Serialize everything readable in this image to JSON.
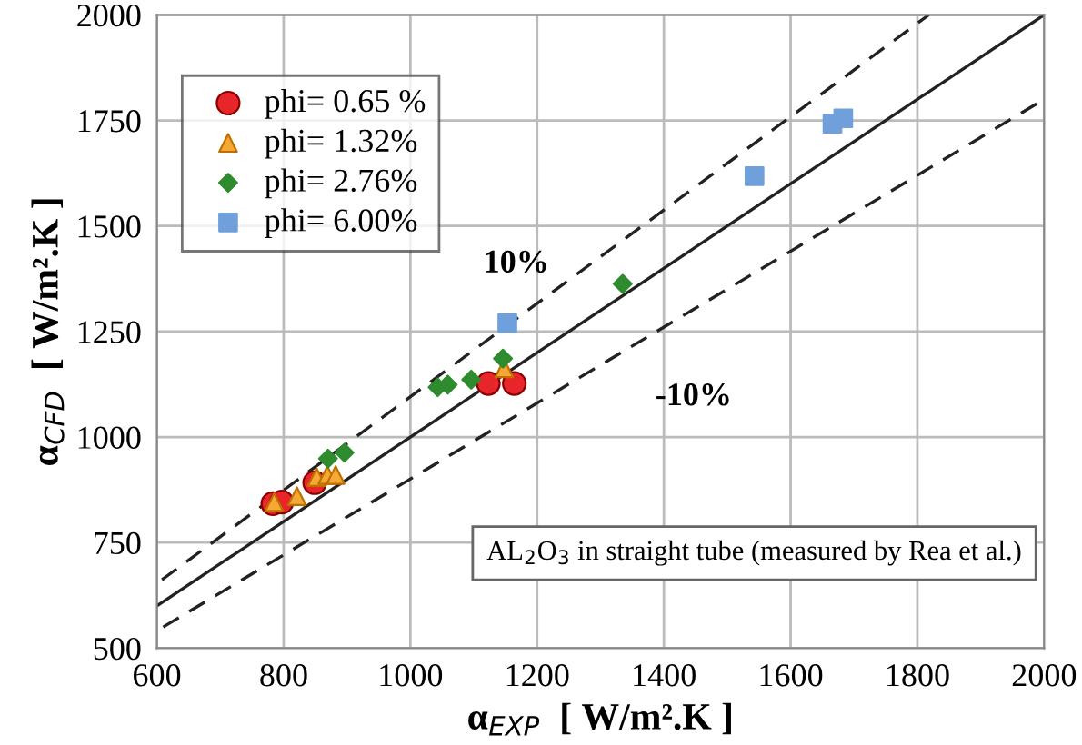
{
  "chart_data": {
    "type": "scatter",
    "xlabel": "α$_{EXP}$  [ W/m².K ]",
    "ylabel": "α$_{CFD}$  [ W/m².K ]",
    "xlim": [
      600,
      2000
    ],
    "ylim": [
      500,
      2000
    ],
    "xticks": [
      600,
      800,
      1000,
      1200,
      1400,
      1600,
      1800,
      2000
    ],
    "yticks": [
      500,
      750,
      1000,
      1250,
      1500,
      1750,
      2000
    ],
    "grid": true,
    "legend": "top left",
    "series": [
      {
        "name": "phi= 0.65 %",
        "color": "#e8262a",
        "marker": "circle",
        "x": [
          783,
          797,
          849,
          1123,
          1164
        ],
        "values": [
          842,
          846,
          892,
          1127,
          1127
        ]
      },
      {
        "name": "phi= 1.32%",
        "color": "#f5a833",
        "marker": "triangle",
        "x": [
          785,
          821,
          852,
          869,
          882,
          1148
        ],
        "values": [
          846,
          860,
          905,
          910,
          910,
          1163
        ]
      },
      {
        "name": "phi= 2.76%",
        "color": "#2e8b2e",
        "marker": "diamond",
        "x": [
          870,
          896,
          1043,
          1059,
          1096,
          1146,
          1335
        ],
        "values": [
          949,
          963,
          1118,
          1124,
          1136,
          1186,
          1363
        ]
      },
      {
        "name": "phi= 6.00%",
        "color": "#6fa0dc",
        "marker": "square",
        "x": [
          1153,
          1543,
          1666,
          1683
        ],
        "values": [
          1270,
          1618,
          1742,
          1755
        ]
      },
      {
        "type": "line",
        "color": "#222222",
        "line_style": "solid",
        "x": [
          600,
          2000
        ],
        "values": [
          600,
          2000
        ]
      },
      {
        "type": "line",
        "color": "#222222",
        "line_style": "dashed",
        "x": [
          608,
          1818
        ],
        "values": [
          662,
          2000
        ]
      },
      {
        "type": "line",
        "color": "#222222",
        "line_style": "dashed",
        "x": [
          610,
          2000
        ],
        "values": [
          550,
          1800
        ]
      }
    ],
    "annotations": [
      "10%",
      "-10%",
      "AL$_{2}$O$_{3}$ in straight tube (measured by Rea et al.)"
    ]
  }
}
